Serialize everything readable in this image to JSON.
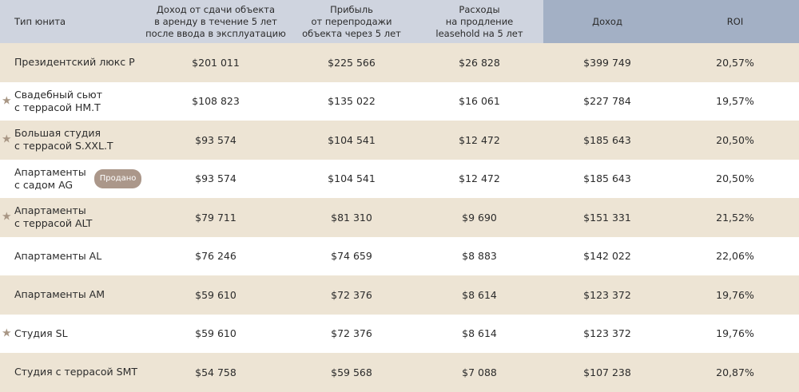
{
  "header": {
    "unit_type": "Тип юнита",
    "rent_income": "Доход от сдачи объекта\nв аренду в течение 5 лет\nпосле ввода в эксплуатацию",
    "resale_profit": "Прибыль\nот перепродажи\nобъекта через 5 лет",
    "leasehold_cost": "Расходы\nна продление\nleasehold на 5 лет",
    "income": "Доход",
    "roi": "ROI"
  },
  "rows": [
    {
      "name": "Президентский люкс P",
      "star": false,
      "badge": "",
      "rent": "$201 011",
      "resale": "$225 566",
      "lease": "$26 828",
      "income": "$399 749",
      "roi": "20,57%"
    },
    {
      "name": "Свадебный сьют\nс террасой HM.T",
      "star": true,
      "badge": "",
      "rent": "$108 823",
      "resale": "$135 022",
      "lease": "$16 061",
      "income": "$227 784",
      "roi": "19,57%"
    },
    {
      "name": "Большая студия\nс террасой S.XXL.T",
      "star": true,
      "badge": "",
      "rent": "$93 574",
      "resale": "$104 541",
      "lease": "$12 472",
      "income": "$185 643",
      "roi": "20,50%"
    },
    {
      "name": "Апартаменты\nс садом AG",
      "star": false,
      "badge": "Продано",
      "rent": "$93 574",
      "resale": "$104 541",
      "lease": "$12 472",
      "income": "$185 643",
      "roi": "20,50%"
    },
    {
      "name": "Апартаменты\nс террасой ALT",
      "star": true,
      "badge": "",
      "rent": "$79 711",
      "resale": "$81 310",
      "lease": "$9 690",
      "income": "$151 331",
      "roi": "21,52%"
    },
    {
      "name": "Апартаменты AL",
      "star": false,
      "badge": "",
      "rent": "$76 246",
      "resale": "$74 659",
      "lease": "$8 883",
      "income": "$142 022",
      "roi": "22,06%"
    },
    {
      "name": "Апартаменты AM",
      "star": false,
      "badge": "",
      "rent": "$59 610",
      "resale": "$72 376",
      "lease": "$8 614",
      "income": "$123 372",
      "roi": "19,76%"
    },
    {
      "name": "Студия SL",
      "star": true,
      "badge": "",
      "rent": "$59 610",
      "resale": "$72 376",
      "lease": "$8 614",
      "income": "$123 372",
      "roi": "19,76%"
    },
    {
      "name": "Студия с террасой SMT",
      "star": false,
      "badge": "",
      "rent": "$54 758",
      "resale": "$59 568",
      "lease": "$7 088",
      "income": "$107 238",
      "roi": "20,87%"
    }
  ],
  "icons": {
    "star": "star-icon"
  },
  "colors": {
    "header_bg": "#cfd4df",
    "header_accent": "#a3b0c5",
    "row_stripe": "#ede4d4",
    "badge_bg": "#ab978a",
    "star": "#a89684"
  }
}
